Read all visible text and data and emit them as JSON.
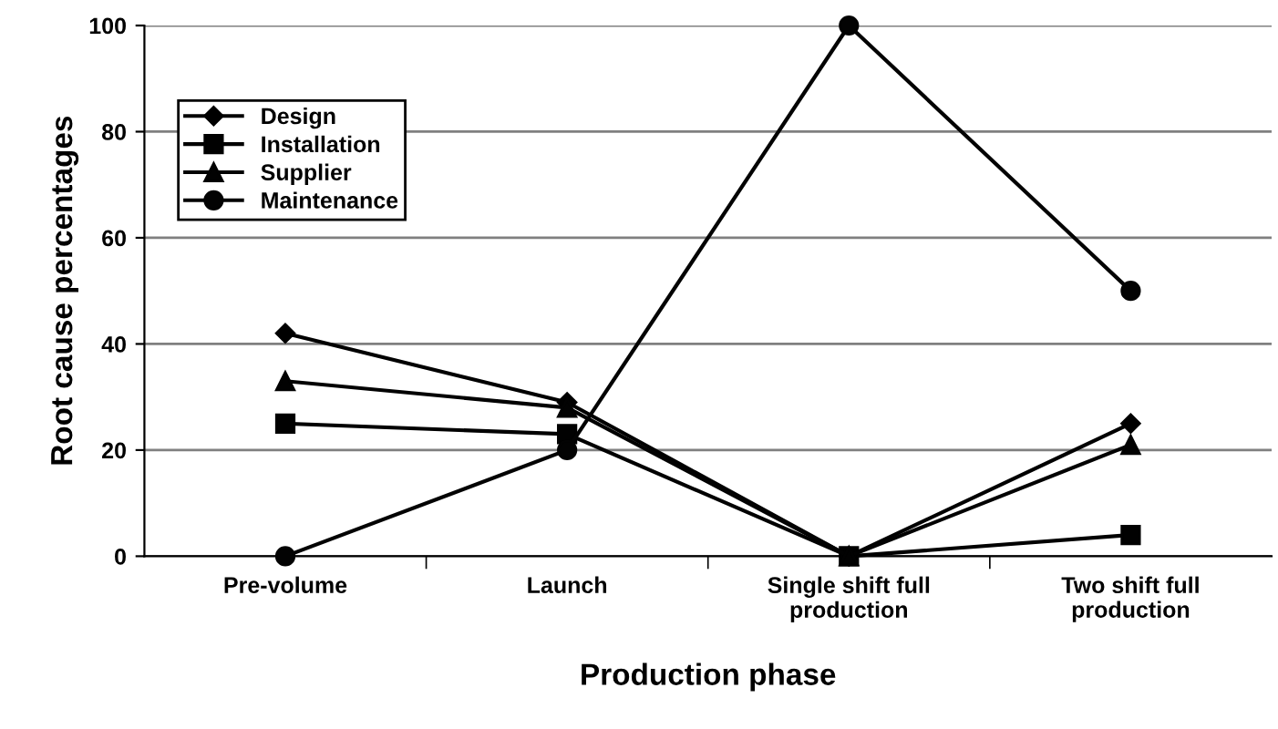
{
  "chart_data": {
    "type": "line",
    "xlabel": "Production phase",
    "ylabel": "Root cause percentages",
    "categories": [
      "Pre-volume",
      "Launch",
      "Single shift full\nproduction",
      "Two shift full\nproduction"
    ],
    "series": [
      {
        "name": "Design",
        "color": "#000000",
        "marker": "diamond",
        "values": [
          42,
          29,
          0,
          25
        ]
      },
      {
        "name": "Installation",
        "color": "#010101",
        "marker": "square",
        "values": [
          25,
          23,
          0,
          4
        ]
      },
      {
        "name": "Supplier",
        "color": "#020202",
        "marker": "triangle",
        "values": [
          33,
          28,
          0,
          21
        ]
      },
      {
        "name": "Maintenance",
        "color": "#030303",
        "marker": "circle",
        "values": [
          0,
          20,
          100,
          50
        ]
      }
    ],
    "ylim": [
      0,
      100
    ],
    "yticks": [
      0,
      20,
      40,
      60,
      80,
      100
    ],
    "grid": "y",
    "legend": "top left",
    "line_style": "solid"
  }
}
